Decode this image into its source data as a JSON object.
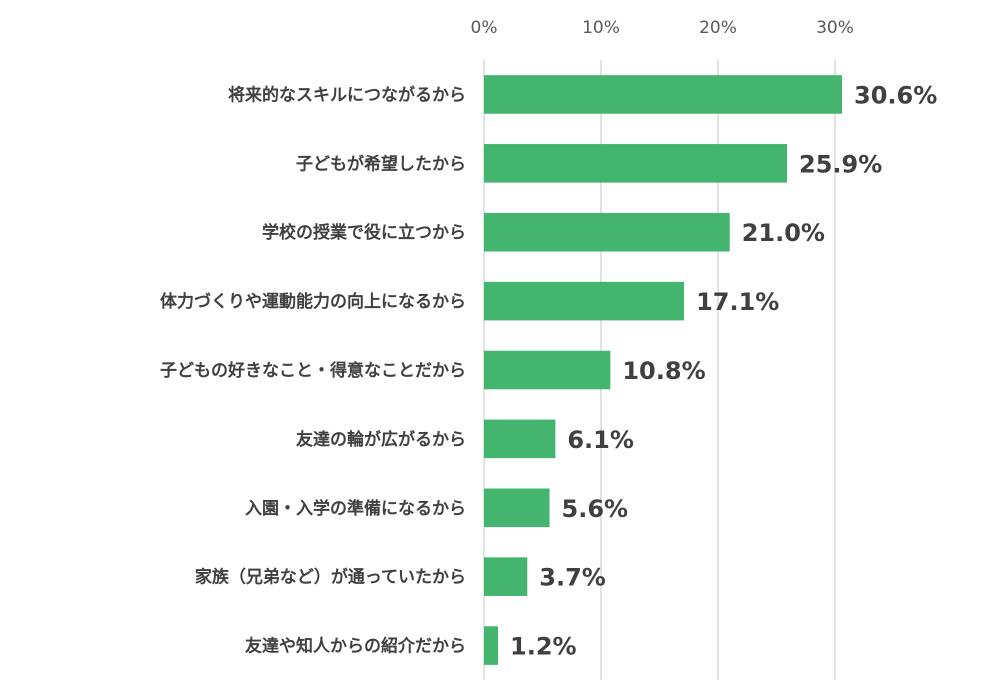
{
  "chart_data": {
    "type": "bar",
    "orientation": "horizontal",
    "categories": [
      "将来的なスキルにつながるから",
      "子どもが希望したから",
      "学校の授業で役に立つから",
      "体力づくりや運動能力の向上になるから",
      "子どもの好きなこと・得意なことだから",
      "友達の輪が広がるから",
      "入園・入学の準備になるから",
      "家族（兄弟など）が通っていたから",
      "友達や知人からの紹介だから"
    ],
    "values": [
      30.6,
      25.9,
      21.0,
      17.1,
      10.8,
      6.1,
      5.6,
      3.7,
      1.2
    ],
    "value_labels": [
      "30.6%",
      "25.9%",
      "21.0%",
      "17.1%",
      "10.8%",
      "6.1%",
      "5.6%",
      "3.7%",
      "1.2%"
    ],
    "xlim": [
      0,
      33
    ],
    "xticks": [
      0,
      10,
      20,
      30
    ],
    "xtick_labels": [
      "0%",
      "10%",
      "20%",
      "30%"
    ],
    "x_axis_position": "top",
    "grid": true,
    "bar_color": "#43b56f",
    "title": "",
    "xlabel": "",
    "ylabel": ""
  }
}
